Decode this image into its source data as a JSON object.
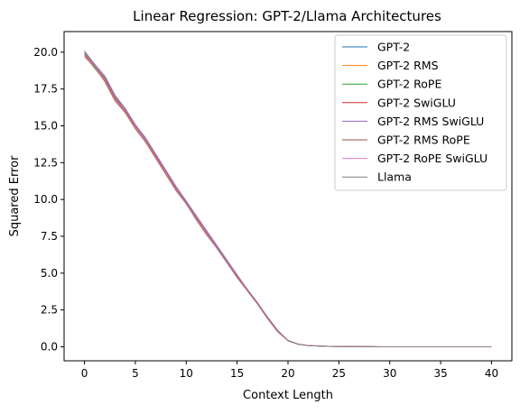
{
  "chart_data": {
    "type": "line",
    "title": "Linear Regression: GPT-2/Llama Architectures",
    "xlabel": "Context Length",
    "ylabel": "Squared Error",
    "xlim": [
      -2,
      42
    ],
    "ylim": [
      -0.95,
      21.4
    ],
    "xticks": [
      0,
      5,
      10,
      15,
      20,
      25,
      30,
      35,
      40
    ],
    "yticks": [
      0.0,
      2.5,
      5.0,
      7.5,
      10.0,
      12.5,
      15.0,
      17.5,
      20.0
    ],
    "xtick_labels": [
      "0",
      "5",
      "10",
      "15",
      "20",
      "25",
      "30",
      "35",
      "40"
    ],
    "ytick_labels": [
      "0.0",
      "2.5",
      "5.0",
      "7.5",
      "10.0",
      "12.5",
      "15.0",
      "17.5",
      "20.0"
    ],
    "legend_position": "top-right",
    "grid": false,
    "x": [
      0,
      1,
      2,
      3,
      4,
      5,
      6,
      7,
      8,
      9,
      10,
      11,
      12,
      13,
      14,
      15,
      16,
      17,
      18,
      19,
      20,
      21,
      22,
      23,
      24,
      25,
      26,
      27,
      28,
      29,
      30,
      31,
      32,
      33,
      34,
      35,
      36,
      37,
      38,
      39,
      40
    ],
    "series": [
      {
        "name": "GPT-2",
        "color": "#1f77b4",
        "values": [
          20.0,
          19.1,
          18.3,
          17.0,
          16.1,
          15.0,
          14.1,
          13.0,
          11.9,
          10.8,
          9.8,
          8.8,
          7.8,
          6.8,
          5.8,
          4.8,
          3.9,
          3.0,
          2.0,
          1.1,
          0.4,
          0.17,
          0.08,
          0.05,
          0.03,
          0.02,
          0.015,
          0.01,
          0.008,
          0.006,
          0.005,
          0.004,
          0.003,
          0.003,
          0.002,
          0.002,
          0.002,
          0.001,
          0.001,
          0.001,
          0.001
        ]
      },
      {
        "name": "GPT-2 RMS",
        "color": "#ff7f0e",
        "values": [
          19.9,
          19.0,
          18.2,
          16.9,
          16.0,
          14.9,
          14.0,
          12.9,
          11.8,
          10.7,
          9.8,
          8.7,
          7.7,
          6.8,
          5.8,
          4.8,
          3.9,
          2.9,
          2.0,
          1.1,
          0.42,
          0.18,
          0.09,
          0.05,
          0.03,
          0.02,
          0.015,
          0.01,
          0.008,
          0.006,
          0.005,
          0.004,
          0.003,
          0.003,
          0.002,
          0.002,
          0.002,
          0.001,
          0.001,
          0.001,
          0.001
        ]
      },
      {
        "name": "GPT-2 RoPE",
        "color": "#2ca02c",
        "values": [
          19.8,
          18.9,
          18.1,
          16.8,
          15.9,
          14.9,
          14.0,
          12.9,
          11.8,
          10.7,
          9.7,
          8.7,
          7.7,
          6.7,
          5.7,
          4.8,
          3.8,
          2.9,
          1.9,
          1.0,
          0.41,
          0.17,
          0.08,
          0.05,
          0.03,
          0.02,
          0.015,
          0.01,
          0.008,
          0.006,
          0.005,
          0.004,
          0.003,
          0.003,
          0.002,
          0.002,
          0.002,
          0.001,
          0.001,
          0.001,
          0.001
        ]
      },
      {
        "name": "GPT-2 SwiGLU",
        "color": "#d62728",
        "values": [
          19.7,
          19.0,
          18.0,
          16.7,
          15.9,
          14.8,
          13.9,
          12.8,
          11.7,
          10.6,
          9.7,
          8.6,
          7.6,
          6.7,
          5.7,
          4.7,
          3.8,
          2.9,
          1.9,
          1.0,
          0.43,
          0.19,
          0.09,
          0.06,
          0.03,
          0.02,
          0.015,
          0.01,
          0.008,
          0.006,
          0.005,
          0.004,
          0.003,
          0.003,
          0.002,
          0.002,
          0.002,
          0.001,
          0.001,
          0.001,
          0.001
        ]
      },
      {
        "name": "GPT-2 RMS SwiGLU",
        "color": "#9467bd",
        "values": [
          20.1,
          19.2,
          18.4,
          17.1,
          16.2,
          15.1,
          14.2,
          13.1,
          12.0,
          10.9,
          9.9,
          8.9,
          7.9,
          6.9,
          5.9,
          4.9,
          3.9,
          3.0,
          2.0,
          1.1,
          0.44,
          0.18,
          0.08,
          0.05,
          0.03,
          0.02,
          0.015,
          0.01,
          0.008,
          0.006,
          0.005,
          0.004,
          0.003,
          0.003,
          0.002,
          0.002,
          0.002,
          0.001,
          0.001,
          0.001,
          0.001
        ]
      },
      {
        "name": "GPT-2 RMS RoPE",
        "color": "#8c564b",
        "values": [
          19.9,
          19.1,
          18.2,
          16.9,
          16.1,
          15.0,
          14.1,
          13.0,
          11.9,
          10.8,
          9.8,
          8.8,
          7.8,
          6.8,
          5.8,
          4.8,
          3.9,
          2.9,
          2.0,
          1.1,
          0.41,
          0.17,
          0.08,
          0.05,
          0.03,
          0.02,
          0.015,
          0.01,
          0.008,
          0.006,
          0.005,
          0.004,
          0.003,
          0.003,
          0.002,
          0.002,
          0.002,
          0.001,
          0.001,
          0.001,
          0.001
        ]
      },
      {
        "name": "GPT-2 RoPE SwiGLU",
        "color": "#e377c2",
        "values": [
          19.8,
          19.0,
          18.1,
          16.8,
          16.0,
          14.9,
          14.0,
          12.9,
          11.8,
          10.7,
          9.7,
          8.7,
          7.7,
          6.7,
          5.7,
          4.8,
          3.8,
          2.9,
          1.9,
          1.0,
          0.42,
          0.18,
          0.09,
          0.05,
          0.03,
          0.02,
          0.015,
          0.01,
          0.008,
          0.006,
          0.005,
          0.004,
          0.003,
          0.003,
          0.002,
          0.002,
          0.002,
          0.001,
          0.001,
          0.001,
          0.001
        ]
      },
      {
        "name": "Llama",
        "color": "#7f7f7f",
        "values": [
          20.0,
          19.1,
          18.3,
          17.0,
          16.1,
          15.0,
          14.1,
          13.0,
          11.9,
          10.8,
          9.8,
          8.8,
          7.8,
          6.8,
          5.8,
          4.8,
          3.9,
          3.0,
          2.0,
          1.1,
          0.43,
          0.18,
          0.08,
          0.05,
          0.03,
          0.02,
          0.015,
          0.01,
          0.008,
          0.006,
          0.005,
          0.004,
          0.003,
          0.003,
          0.002,
          0.002,
          0.002,
          0.001,
          0.001,
          0.001,
          0.001
        ]
      }
    ]
  }
}
